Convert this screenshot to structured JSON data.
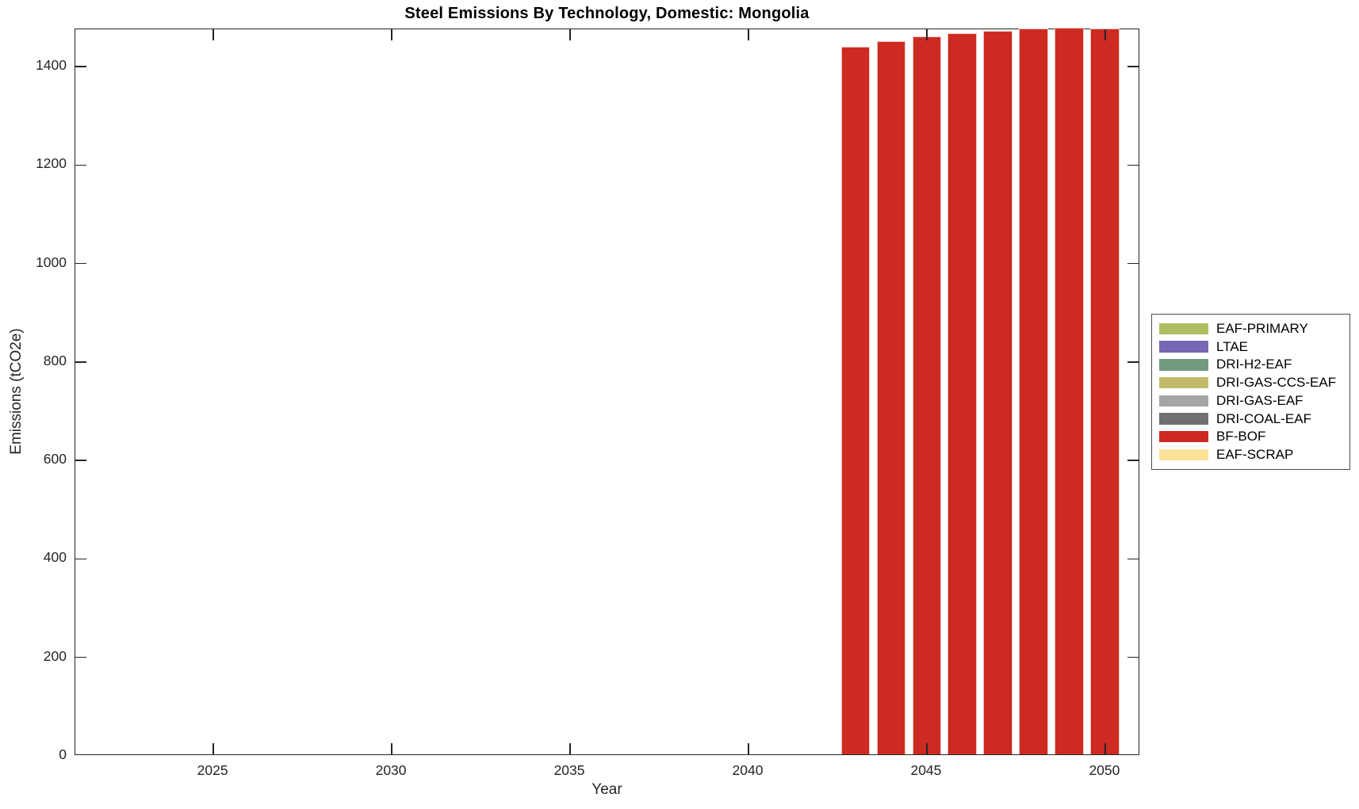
{
  "figure": {
    "title": "Steel Emissions By Technology, Domestic: Mongolia",
    "xlabel": "Year",
    "ylabel": "Emissions (tCO2e)"
  },
  "chart_data": {
    "type": "bar",
    "title": "Steel Emissions By Technology, Domestic: Mongolia",
    "xlabel": "Year",
    "ylabel": "Emissions (tCO2e)",
    "x": [
      2043,
      2044,
      2045,
      2046,
      2047,
      2048,
      2049,
      2050
    ],
    "series": [
      {
        "name": "BF-BOF",
        "color": "#CD2A22",
        "values": [
          1438,
          1448,
          1458,
          1465,
          1470,
          1474,
          1476,
          1474
        ]
      }
    ],
    "bar_width_years": 0.82,
    "xlim": [
      2021.13,
      2050.98
    ],
    "ylim": [
      0,
      1476
    ],
    "xticks": [
      2025,
      2030,
      2035,
      2040,
      2045,
      2050
    ],
    "yticks": [
      0,
      200,
      400,
      600,
      800,
      1000,
      1200,
      1400
    ],
    "grid": false,
    "tick_direction": "in",
    "legend_position": "outside-right",
    "legend": [
      {
        "label": "EAF-PRIMARY",
        "color": "#B1BD62"
      },
      {
        "label": "LTAE",
        "color": "#7767B5"
      },
      {
        "label": "DRI-H2-EAF",
        "color": "#73997E"
      },
      {
        "label": "DRI-GAS-CCS-EAF",
        "color": "#C2BA6B"
      },
      {
        "label": "DRI-GAS-EAF",
        "color": "#A6A6A6"
      },
      {
        "label": "DRI-COAL-EAF",
        "color": "#707070"
      },
      {
        "label": "BF-BOF",
        "color": "#CD2A22"
      },
      {
        "label": "EAF-SCRAP",
        "color": "#FBE299"
      }
    ],
    "axis_color": "#252525",
    "bar_edge_color": "#F2C3BA"
  }
}
